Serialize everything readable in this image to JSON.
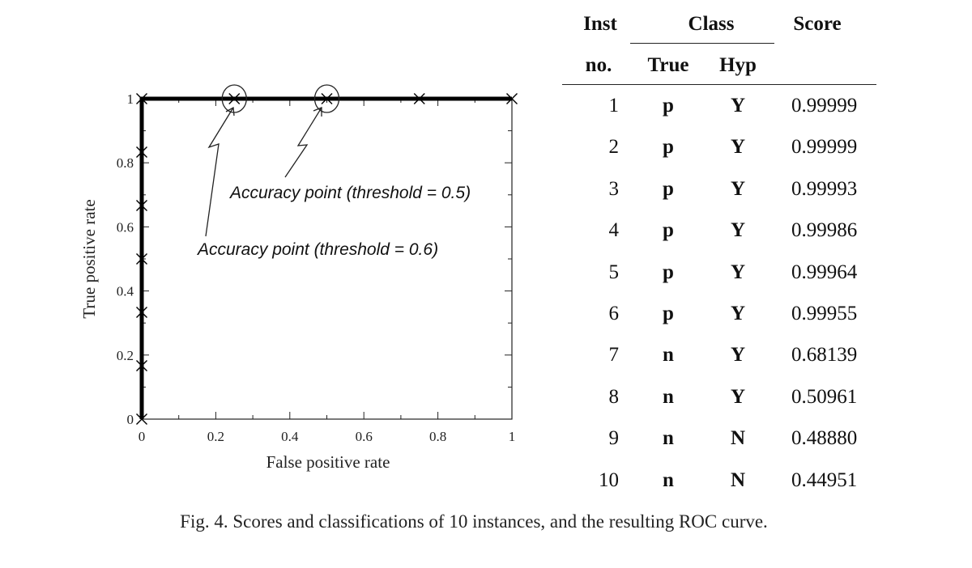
{
  "chart_data": {
    "type": "line",
    "xlabel": "False positive rate",
    "ylabel": "True positive rate",
    "xlim": [
      0,
      1
    ],
    "ylim": [
      0,
      1
    ],
    "x_ticks": [
      "0",
      "0.2",
      "0.4",
      "0.6",
      "0.8",
      "1"
    ],
    "y_ticks": [
      "0",
      "0.2",
      "0.4",
      "0.6",
      "0.8",
      "1"
    ],
    "grid": false,
    "series": [
      {
        "x": [
          0,
          0,
          0,
          0,
          0,
          0,
          0,
          0.25,
          0.5,
          0.75,
          1
        ],
        "y": [
          0,
          0.1667,
          0.3333,
          0.5,
          0.6667,
          0.8333,
          1,
          1,
          1,
          1,
          1
        ]
      }
    ],
    "circled_points": [
      [
        0.25,
        1
      ],
      [
        0.5,
        1
      ]
    ],
    "annotations": [
      {
        "text": "Accuracy point (threshold = 0.5)",
        "target": [
          0.5,
          1
        ]
      },
      {
        "text": "Accuracy point (threshold = 0.6)",
        "target": [
          0.25,
          1
        ]
      }
    ]
  },
  "table": {
    "headers": {
      "inst": "Inst",
      "no": "no.",
      "class_group": "Class",
      "true": "True",
      "hyp": "Hyp",
      "score": "Score"
    },
    "rows": [
      {
        "no": "1",
        "true": "p",
        "hyp": "Y",
        "score": "0.99999"
      },
      {
        "no": "2",
        "true": "p",
        "hyp": "Y",
        "score": "0.99999"
      },
      {
        "no": "3",
        "true": "p",
        "hyp": "Y",
        "score": "0.99993"
      },
      {
        "no": "4",
        "true": "p",
        "hyp": "Y",
        "score": "0.99986"
      },
      {
        "no": "5",
        "true": "p",
        "hyp": "Y",
        "score": "0.99964"
      },
      {
        "no": "6",
        "true": "p",
        "hyp": "Y",
        "score": "0.99955"
      },
      {
        "no": "7",
        "true": "n",
        "hyp": "Y",
        "score": "0.68139"
      },
      {
        "no": "8",
        "true": "n",
        "hyp": "Y",
        "score": "0.50961"
      },
      {
        "no": "9",
        "true": "n",
        "hyp": "N",
        "score": "0.48880"
      },
      {
        "no": "10",
        "true": "n",
        "hyp": "N",
        "score": "0.44951"
      }
    ]
  },
  "caption": "Fig. 4.  Scores and classifications of 10 instances, and the resulting ROC curve."
}
